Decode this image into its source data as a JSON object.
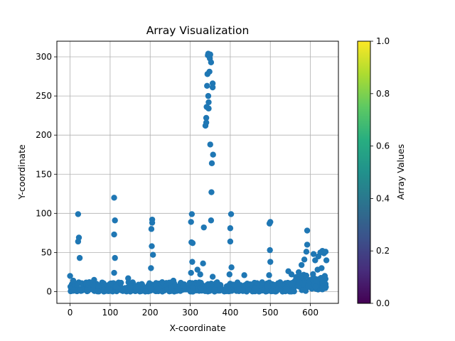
{
  "chart_data": {
    "type": "scatter",
    "title": "Array Visualization",
    "xlabel": "X-coordinate",
    "ylabel": "Y-coordinate",
    "xlim": [
      -33,
      670
    ],
    "ylim": [
      -15,
      320
    ],
    "xticks": [
      0,
      100,
      200,
      300,
      400,
      500,
      600
    ],
    "yticks": [
      0,
      50,
      100,
      150,
      200,
      250,
      300
    ],
    "grid": true,
    "point_color": "#1f77b4",
    "colorbar": {
      "label": "Array Values",
      "range": [
        0.0,
        1.0
      ],
      "ticks": [
        "0.0",
        "0.2",
        "0.4",
        "0.6",
        "0.8",
        "1.0"
      ],
      "colormap": "viridis"
    },
    "outliers": [
      {
        "x": 20,
        "y": 99
      },
      {
        "x": 20,
        "y": 64
      },
      {
        "x": 22,
        "y": 69
      },
      {
        "x": 24,
        "y": 43
      },
      {
        "x": 110,
        "y": 120
      },
      {
        "x": 112,
        "y": 91
      },
      {
        "x": 110,
        "y": 73
      },
      {
        "x": 112,
        "y": 43
      },
      {
        "x": 110,
        "y": 24
      },
      {
        "x": 205,
        "y": 92
      },
      {
        "x": 205,
        "y": 88
      },
      {
        "x": 203,
        "y": 80
      },
      {
        "x": 204,
        "y": 58
      },
      {
        "x": 207,
        "y": 47
      },
      {
        "x": 202,
        "y": 30
      },
      {
        "x": 304,
        "y": 99
      },
      {
        "x": 302,
        "y": 89
      },
      {
        "x": 303,
        "y": 63
      },
      {
        "x": 306,
        "y": 62
      },
      {
        "x": 305,
        "y": 38
      },
      {
        "x": 302,
        "y": 24
      },
      {
        "x": 334,
        "y": 82
      },
      {
        "x": 332,
        "y": 36
      },
      {
        "x": 338,
        "y": 212
      },
      {
        "x": 340,
        "y": 216
      },
      {
        "x": 340,
        "y": 222
      },
      {
        "x": 341,
        "y": 236
      },
      {
        "x": 342,
        "y": 263
      },
      {
        "x": 343,
        "y": 278
      },
      {
        "x": 344,
        "y": 302
      },
      {
        "x": 345,
        "y": 304
      },
      {
        "x": 345,
        "y": 250
      },
      {
        "x": 346,
        "y": 242
      },
      {
        "x": 346,
        "y": 234
      },
      {
        "x": 348,
        "y": 281
      },
      {
        "x": 349,
        "y": 298
      },
      {
        "x": 350,
        "y": 303
      },
      {
        "x": 352,
        "y": 293
      },
      {
        "x": 350,
        "y": 188
      },
      {
        "x": 356,
        "y": 266
      },
      {
        "x": 356,
        "y": 261
      },
      {
        "x": 357,
        "y": 175
      },
      {
        "x": 354,
        "y": 164
      },
      {
        "x": 353,
        "y": 127
      },
      {
        "x": 352,
        "y": 91
      },
      {
        "x": 356,
        "y": 19
      },
      {
        "x": 402,
        "y": 99
      },
      {
        "x": 400,
        "y": 81
      },
      {
        "x": 400,
        "y": 64
      },
      {
        "x": 403,
        "y": 31
      },
      {
        "x": 398,
        "y": 22
      },
      {
        "x": 500,
        "y": 89
      },
      {
        "x": 498,
        "y": 87
      },
      {
        "x": 499,
        "y": 53
      },
      {
        "x": 500,
        "y": 38
      },
      {
        "x": 497,
        "y": 21
      },
      {
        "x": 592,
        "y": 78
      },
      {
        "x": 592,
        "y": 60
      },
      {
        "x": 590,
        "y": 51
      },
      {
        "x": 585,
        "y": 41
      },
      {
        "x": 578,
        "y": 34
      },
      {
        "x": 608,
        "y": 48
      },
      {
        "x": 612,
        "y": 40
      },
      {
        "x": 620,
        "y": 45
      },
      {
        "x": 625,
        "y": 50
      },
      {
        "x": 630,
        "y": 52
      },
      {
        "x": 634,
        "y": 49
      },
      {
        "x": 638,
        "y": 51
      },
      {
        "x": 640,
        "y": 40
      },
      {
        "x": 628,
        "y": 30
      },
      {
        "x": 636,
        "y": 20
      },
      {
        "x": 618,
        "y": 28
      },
      {
        "x": 0,
        "y": 20
      },
      {
        "x": 8,
        "y": 14
      },
      {
        "x": 48,
        "y": 12
      },
      {
        "x": 60,
        "y": 15
      },
      {
        "x": 145,
        "y": 17
      },
      {
        "x": 230,
        "y": 12
      },
      {
        "x": 258,
        "y": 14
      },
      {
        "x": 318,
        "y": 28
      },
      {
        "x": 325,
        "y": 22
      },
      {
        "x": 435,
        "y": 21
      },
      {
        "x": 545,
        "y": 26
      },
      {
        "x": 553,
        "y": 22
      }
    ],
    "dense_baseline": {
      "x_start": 0,
      "x_end": 640,
      "y_min": 0,
      "y_max": 12,
      "approx_count": 620
    }
  }
}
